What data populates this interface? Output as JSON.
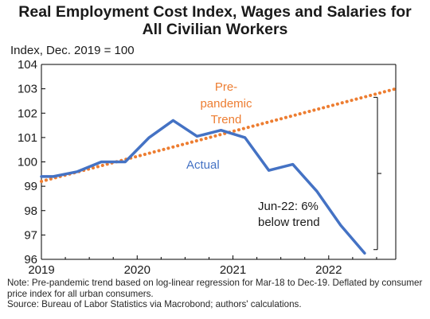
{
  "chart_data": {
    "type": "line",
    "title_lines": [
      "Real Employment Cost Index, Wages and Salaries for",
      "All Civilian Workers"
    ],
    "ylabel": "Index, Dec. 2019 = 100",
    "xlabel": "",
    "ylim": [
      96,
      104
    ],
    "yticks": [
      96,
      97,
      98,
      99,
      100,
      101,
      102,
      103,
      104
    ],
    "xlim": [
      2019.0,
      2022.7
    ],
    "xticks": [
      2019,
      2020,
      2021,
      2022
    ],
    "grid": false,
    "series": [
      {
        "name": "Actual",
        "color": "#4472C4",
        "style": "solid",
        "x": [
          2019.0,
          2019.125,
          2019.375,
          2019.625,
          2019.875,
          2020.125,
          2020.375,
          2020.625,
          2020.875,
          2021.125,
          2021.375,
          2021.625,
          2021.875,
          2022.125,
          2022.375
        ],
        "y": [
          99.4,
          99.4,
          99.6,
          100.0,
          100.0,
          101.0,
          101.7,
          101.05,
          101.3,
          101.0,
          99.65,
          99.9,
          98.8,
          97.4,
          96.25
        ]
      },
      {
        "name": "Pre-pandemic Trend",
        "color": "#ED7D31",
        "style": "dotted",
        "x": [
          2019.0,
          2022.7
        ],
        "y": [
          99.2,
          103.0
        ]
      }
    ],
    "annotations": [
      {
        "text": "Jun-22: 6%",
        "text2": "below trend",
        "x": 2022.2,
        "y": 98.0
      }
    ],
    "legend_labels": [
      {
        "text": "Pre-",
        "series": 1
      },
      {
        "text": "pandemic",
        "series": 1
      },
      {
        "text": "Trend",
        "series": 1
      },
      {
        "text": "Actual",
        "series": 0
      }
    ]
  },
  "notes": {
    "line1": "Note: Pre-pandemic trend based on log-linear regression for Mar-18 to Dec-19. Deflated by consumer price index for all urban consumers.",
    "line2": "Source: Bureau of Labor Statistics via Macrobond; authors' calculations."
  }
}
